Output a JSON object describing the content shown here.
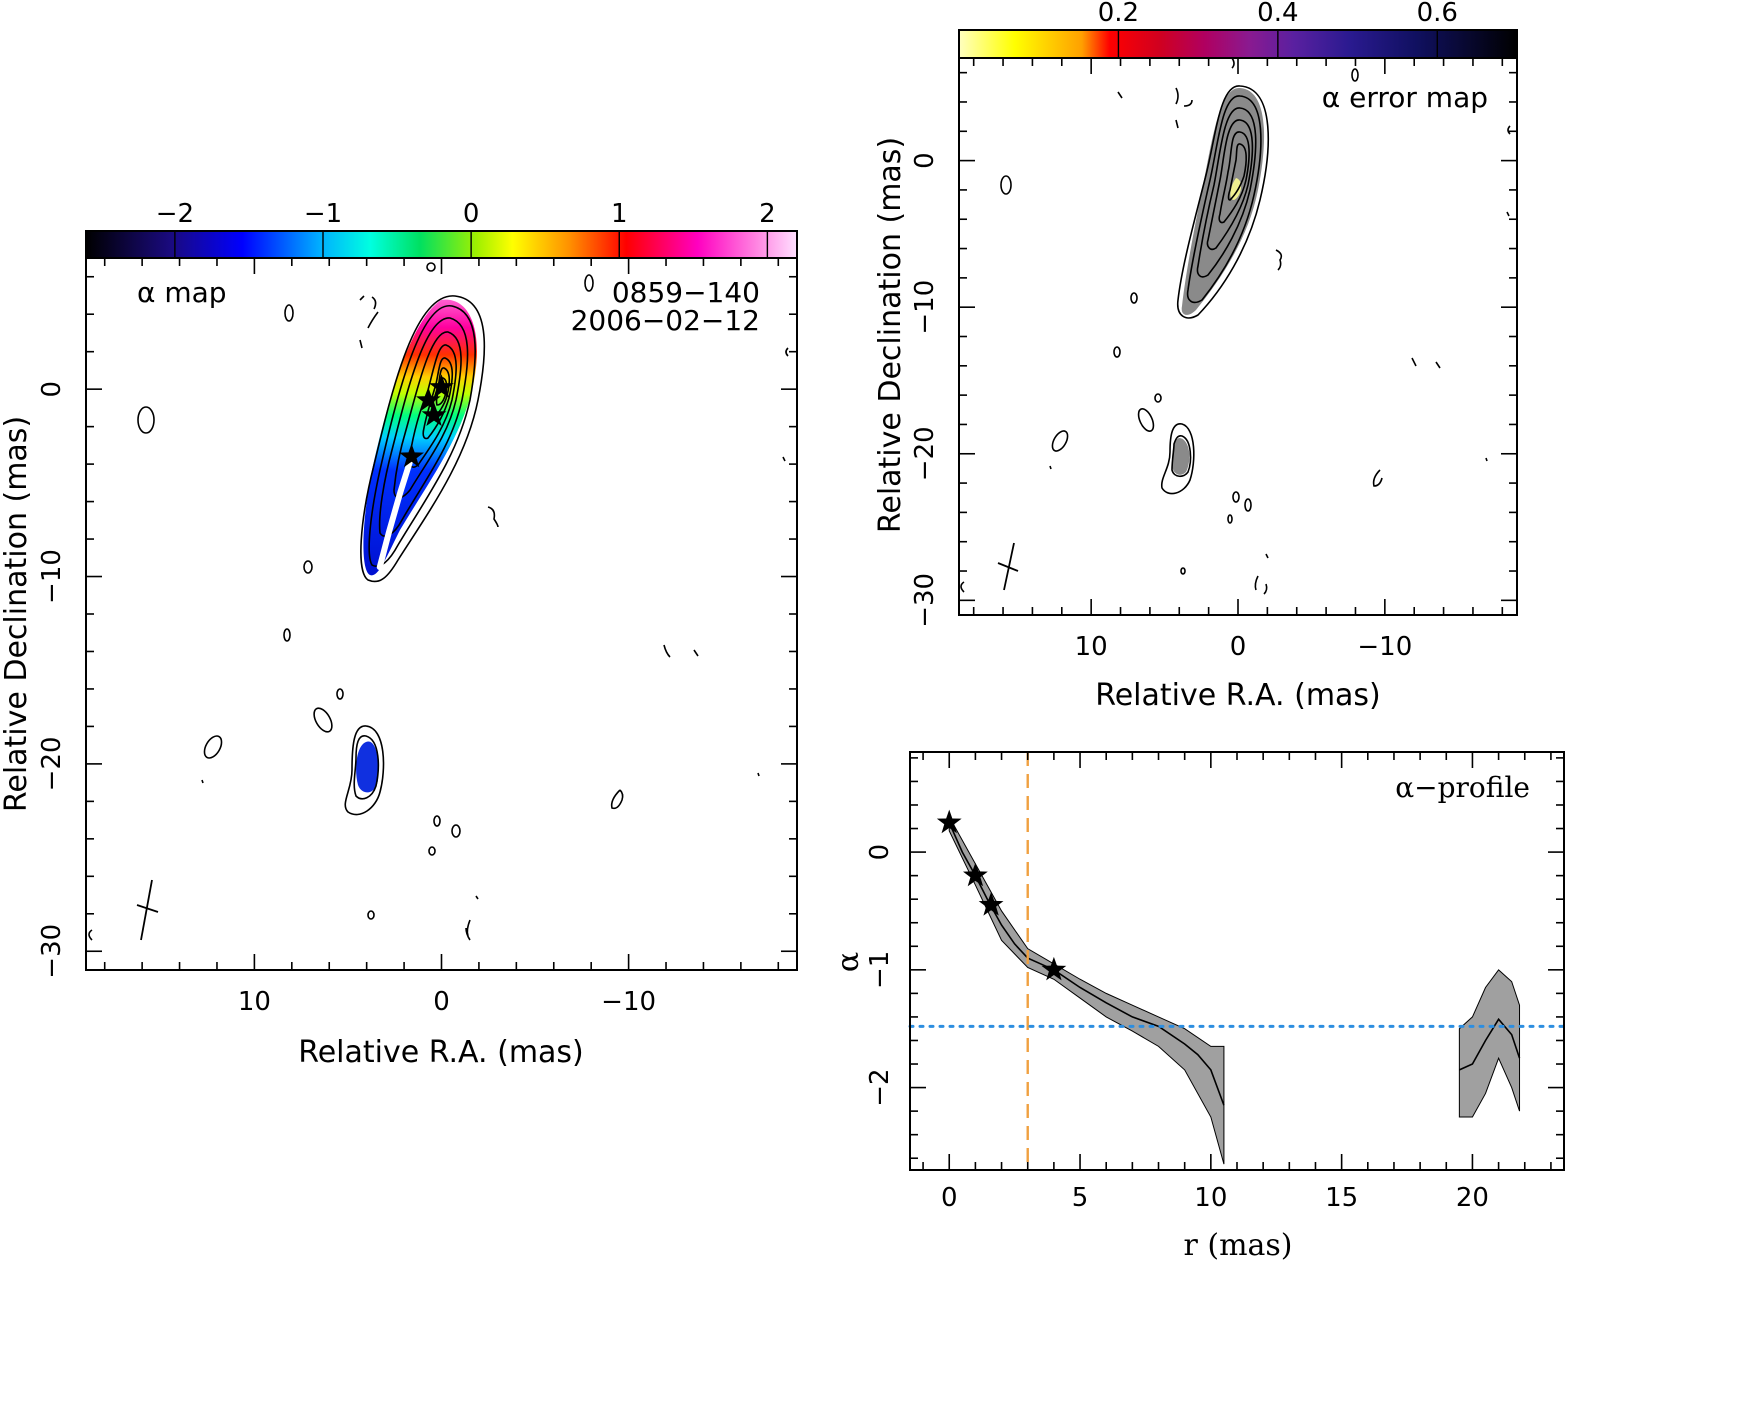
{
  "panel_alpha_map": {
    "label": "α map",
    "source": "0859−140",
    "date": "2006−02−12",
    "xlabel": "Relative R.A. (mas)",
    "ylabel": "Relative Declination (mas)",
    "x_ticks": [
      "10",
      "0",
      "−10"
    ],
    "y_ticks": [
      "0",
      "−10",
      "−20",
      "−30"
    ],
    "colorbar_ticks": [
      "−2",
      "−1",
      "0",
      "1",
      "2"
    ]
  },
  "panel_error_map": {
    "label": "α error map",
    "xlabel": "Relative R.A. (mas)",
    "ylabel": "Relative Declination (mas)",
    "x_ticks": [
      "10",
      "0",
      "−10"
    ],
    "y_ticks": [
      "0",
      "−10",
      "−20",
      "−30"
    ],
    "colorbar_ticks": [
      "0.2",
      "0.4",
      "0.6"
    ]
  },
  "panel_profile": {
    "label": "α−profile",
    "xlabel": "r (mas)",
    "ylabel": "α",
    "x_ticks": [
      "0",
      "5",
      "10",
      "15",
      "20"
    ],
    "y_ticks": [
      "0",
      "−1",
      "−2"
    ]
  },
  "colors": {
    "profile_band": "#a0a0a0",
    "vertical_line": "#f0a040",
    "horizontal_line": "#2d8ee0",
    "ridge_line": "#ffffff",
    "error_core": "#808080"
  },
  "chart_data": [
    {
      "type": "heatmap",
      "title": "α map",
      "annotations": [
        "0859−140",
        "2006−02−12"
      ],
      "xlabel": "Relative R.A. (mas)",
      "ylabel": "Relative Declination (mas)",
      "xlim": [
        19,
        -19
      ],
      "ylim": [
        -31,
        7
      ],
      "x_reversed": true,
      "colorbar": {
        "range": [
          -2.6,
          2.2
        ],
        "ticks": [
          -2,
          -1,
          0,
          1,
          2
        ],
        "colormap": "spectral"
      },
      "stars": [
        {
          "x": 0.0,
          "y": 0.1
        },
        {
          "x": 0.7,
          "y": -0.6
        },
        {
          "x": 0.4,
          "y": -1.4
        },
        {
          "x": 1.6,
          "y": -3.6
        }
      ],
      "ridge_line": [
        {
          "x": 1.6,
          "y": -3.6
        },
        {
          "x": 2.2,
          "y": -5.5
        },
        {
          "x": 2.8,
          "y": -7.6
        },
        {
          "x": 3.3,
          "y": -9.5
        }
      ]
    },
    {
      "type": "heatmap",
      "title": "α error map",
      "xlabel": "Relative R.A. (mas)",
      "ylabel": "Relative Declination (mas)",
      "xlim": [
        19,
        -19
      ],
      "ylim": [
        -31,
        7
      ],
      "x_reversed": true,
      "colorbar": {
        "range": [
          0.0,
          0.7
        ],
        "ticks": [
          0.2,
          0.4,
          0.6
        ],
        "colormap": "heat"
      }
    },
    {
      "type": "line",
      "title": "α−profile",
      "xlabel": "r (mas)",
      "ylabel": "α",
      "xlim": [
        -1.5,
        23.5
      ],
      "ylim": [
        -2.7,
        0.85
      ],
      "series": [
        {
          "x": [
            0,
            0.5,
            1,
            1.5,
            2,
            2.5,
            3,
            3.5,
            4,
            5,
            6,
            7,
            8,
            9,
            9.5,
            10,
            10.5
          ],
          "values": [
            0.25,
            0.0,
            -0.2,
            -0.42,
            -0.62,
            -0.78,
            -0.9,
            -0.95,
            -1.0,
            -1.15,
            -1.28,
            -1.4,
            -1.48,
            -1.63,
            -1.72,
            -1.85,
            -2.15
          ]
        },
        {
          "x": [
            19.5,
            20,
            20.5,
            21,
            21.5,
            21.8
          ],
          "values": [
            -1.85,
            -1.8,
            -1.6,
            -1.42,
            -1.55,
            -1.75
          ]
        }
      ],
      "error_band": [
        {
          "x": [
            0,
            1,
            2,
            3,
            4,
            5,
            6,
            7,
            8,
            9,
            10,
            10.5
          ],
          "upper": [
            0.3,
            -0.1,
            -0.5,
            -0.82,
            -0.95,
            -1.08,
            -1.2,
            -1.3,
            -1.4,
            -1.5,
            -1.65,
            -1.65
          ],
          "lower": [
            0.18,
            -0.28,
            -0.75,
            -0.98,
            -1.08,
            -1.24,
            -1.4,
            -1.52,
            -1.65,
            -1.85,
            -2.25,
            -2.65
          ]
        },
        {
          "x": [
            19.5,
            20,
            20.5,
            21,
            21.5,
            21.8
          ],
          "upper": [
            -1.5,
            -1.4,
            -1.15,
            -1.0,
            -1.1,
            -1.3
          ],
          "lower": [
            -2.25,
            -2.25,
            -2.05,
            -1.75,
            -2.0,
            -2.2
          ]
        }
      ],
      "stars": [
        {
          "x": 0.0,
          "y": 0.25
        },
        {
          "x": 1.0,
          "y": -0.2
        },
        {
          "x": 1.6,
          "y": -0.45
        },
        {
          "x": 4.0,
          "y": -1.0
        }
      ],
      "vertical_line": {
        "x": 3.0,
        "style": "dashed"
      },
      "horizontal_line": {
        "y": -1.48,
        "style": "dotted"
      }
    }
  ]
}
